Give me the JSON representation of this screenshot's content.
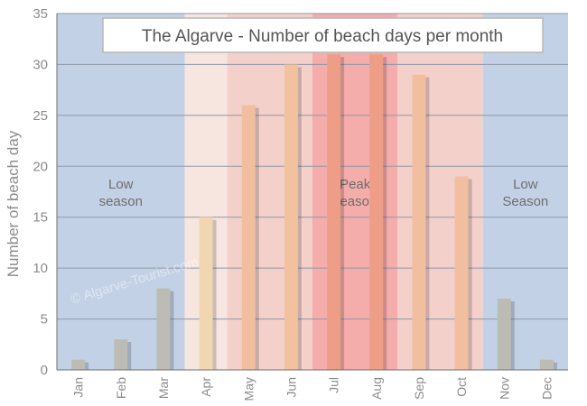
{
  "chart_data": {
    "type": "bar",
    "title": "The Algarve - Number of beach days per month",
    "ylabel": "Number of beach day",
    "xlabel": "",
    "ylim": [
      0,
      35
    ],
    "yticks": [
      0,
      5,
      10,
      15,
      20,
      25,
      30,
      35
    ],
    "grid": true,
    "categories": [
      "Jan",
      "Feb",
      "Mar",
      "Apr",
      "May",
      "Jun",
      "Jul",
      "Aug",
      "Sep",
      "Oct",
      "Nov",
      "Dec"
    ],
    "values": [
      1,
      3,
      8,
      15,
      26,
      30,
      31,
      31,
      29,
      19,
      7,
      1
    ],
    "season_bands": [
      {
        "label_lines": [
          "Low",
          "season"
        ],
        "months": [
          "Jan",
          "Feb",
          "Mar"
        ],
        "color": "#c3d1e6"
      },
      {
        "label_lines": [],
        "months": [
          "Apr"
        ],
        "color": "#f7e5df"
      },
      {
        "label_lines": [],
        "months": [
          "May",
          "Jun"
        ],
        "color": "#f4d0cb"
      },
      {
        "label_lines": [
          "Peak",
          "season"
        ],
        "months": [
          "Jul",
          "Aug"
        ],
        "color": "#f5adab"
      },
      {
        "label_lines": [],
        "months": [
          "Sep",
          "Oct"
        ],
        "color": "#f4d0cb"
      },
      {
        "label_lines": [
          "Low",
          "Season"
        ],
        "months": [
          "Nov",
          "Dec"
        ],
        "color": "#c3d1e6"
      }
    ],
    "bar_colors": [
      "#bcbcb4",
      "#bcbcb4",
      "#bcbcb4",
      "#f0d7b2",
      "#f1bea0",
      "#f2c19e",
      "#ee9e86",
      "#ee9e86",
      "#f1bea0",
      "#f1bea0",
      "#bcbcb4",
      "#bcbcb4"
    ],
    "watermark": "© Algarve-Tourist.com"
  }
}
